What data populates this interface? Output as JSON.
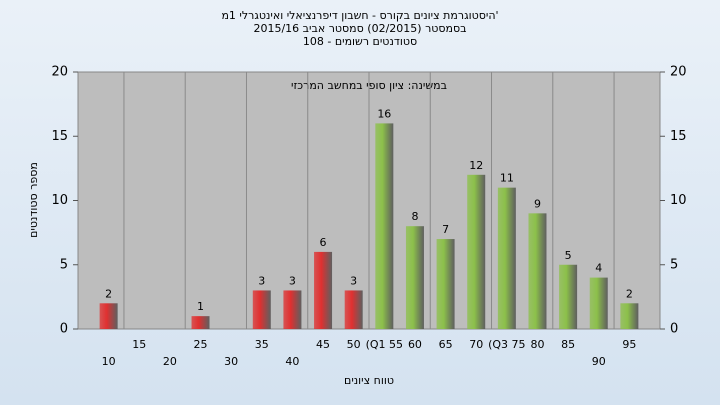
{
  "chart_data": {
    "type": "bar",
    "title": [
      "היסטוגרמת ציונים בקורס - חשבון דיפרנציאלי ואינטגרלי 1מ'",
      "בסמסטר  (02/2015)  סמסטר אביב 2015/16",
      "סטודנטים רשומים - 108"
    ],
    "annotation": "במשינה: ציון סופי במחשב המרכזי",
    "x_label": "טווח ציונים",
    "y_label": "מספר סטודנטים",
    "categories": [
      "10",
      "15",
      "20",
      "25",
      "30",
      "35",
      "40",
      "45",
      "50",
      "(Q1 55",
      "60",
      "65",
      "70",
      "(Q3 75",
      "80",
      "85",
      "90",
      "95"
    ],
    "values": [
      2,
      0,
      0,
      1,
      0,
      3,
      3,
      6,
      3,
      16,
      8,
      7,
      12,
      11,
      9,
      5,
      4,
      2
    ],
    "colors": [
      "#e03030",
      "#e03030",
      "#e03030",
      "#e03030",
      "#e03030",
      "#e03030",
      "#e03030",
      "#e03030",
      "#e03030",
      "#8cc04a",
      "#8cc04a",
      "#8cc04a",
      "#8cc04a",
      "#8cc04a",
      "#8cc04a",
      "#8cc04a",
      "#8cc04a",
      "#8cc04a"
    ],
    "ylim": [
      0,
      20
    ],
    "yticks": [
      0,
      5,
      10,
      15,
      20
    ],
    "y2lim": [
      0,
      20
    ],
    "y2ticks": [
      0,
      5,
      10,
      15,
      20
    ],
    "grid": true
  }
}
